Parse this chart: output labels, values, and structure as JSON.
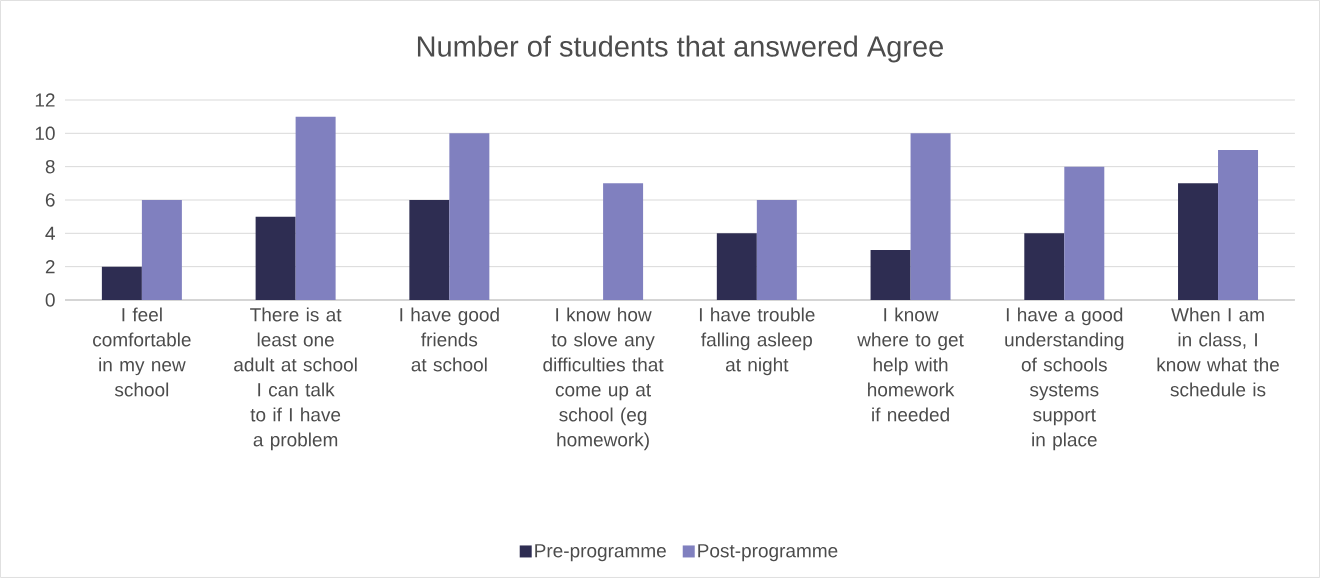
{
  "chart_data": {
    "type": "bar",
    "title": "Number of students that answered Agree",
    "categories": [
      "I feel comfortable in my new school",
      "There is at least one adult at school I can talk to if I have a problem",
      "I have good friends at school",
      "I know how to slove any difficulties that come up at school (eg homework)",
      "I have trouble falling asleep at night",
      "I know where to get help with homework if needed",
      "I have a good understanding of schools systems support in place",
      "When I am in class, I know what the schedule is"
    ],
    "series": [
      {
        "name": "Pre-programme",
        "color": "#2e2d52",
        "values": [
          2,
          5,
          6,
          0,
          4,
          3,
          4,
          7
        ]
      },
      {
        "name": "Post-programme",
        "color": "#8080bf",
        "values": [
          6,
          11,
          10,
          7,
          6,
          10,
          8,
          9
        ]
      }
    ],
    "ylim": [
      0,
      12
    ],
    "yticks": [
      0,
      2,
      4,
      6,
      8,
      10,
      12
    ],
    "grid": "y",
    "legend": "bottom"
  }
}
